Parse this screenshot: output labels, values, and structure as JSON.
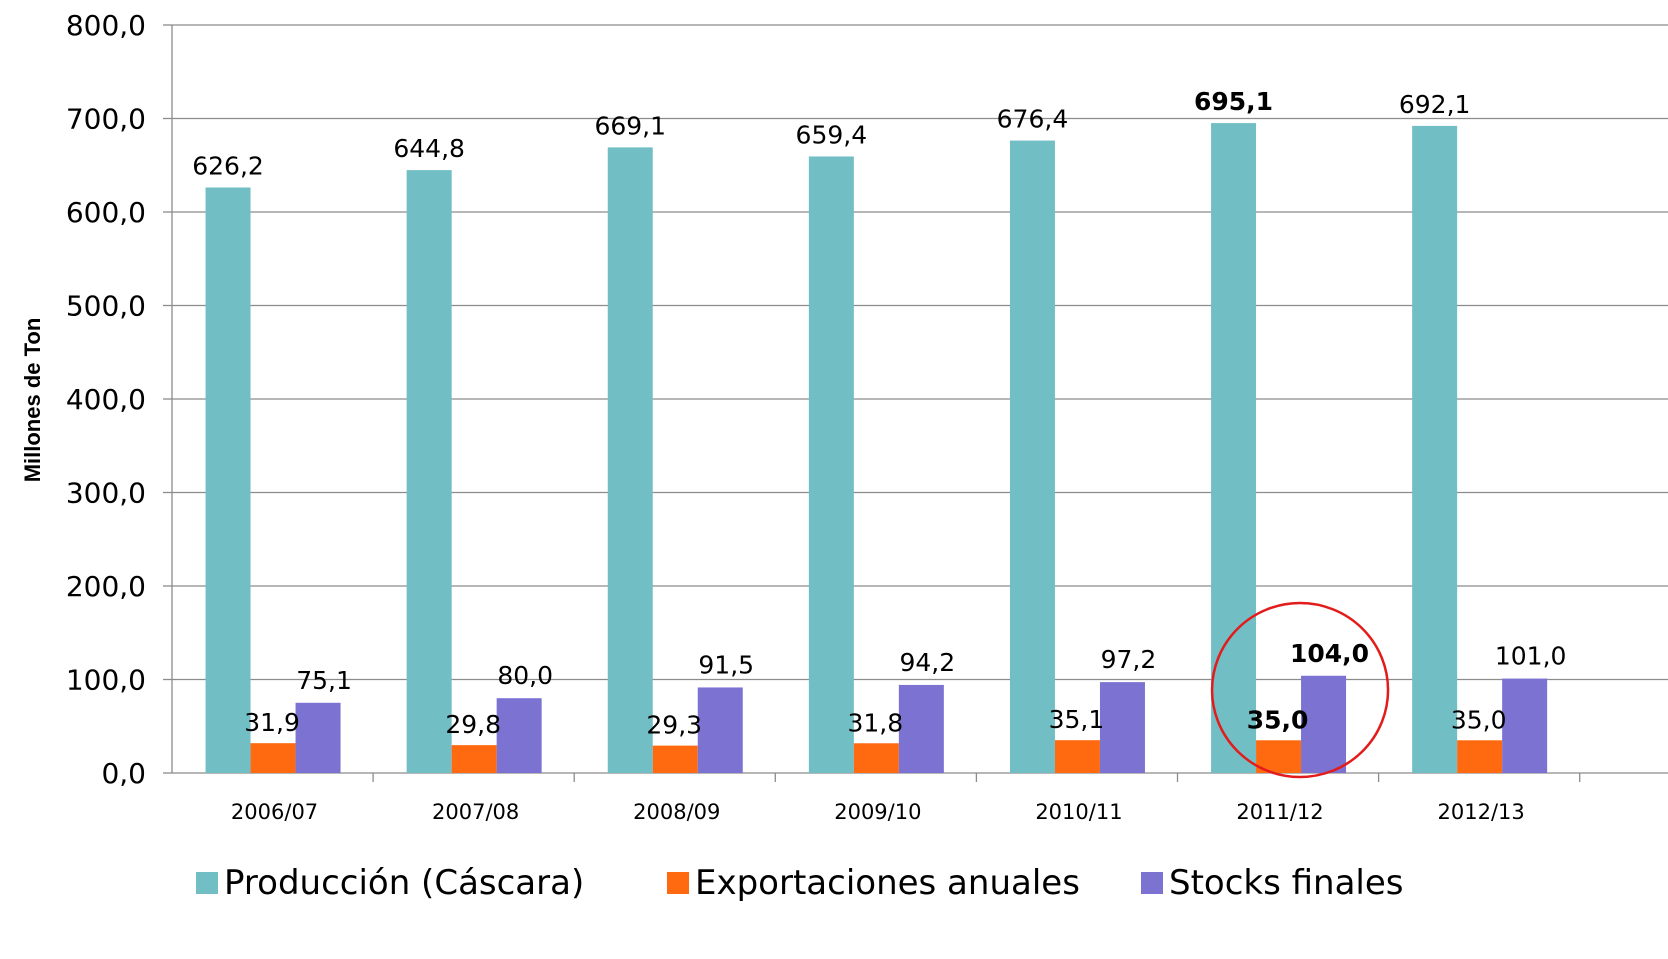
{
  "chart_data": {
    "type": "bar",
    "title": "",
    "xlabel": "",
    "ylabel": "Millones de Ton",
    "ylim": [
      0,
      800
    ],
    "yticks": [
      "0,0",
      "100,0",
      "200,0",
      "300,0",
      "400,0",
      "500,0",
      "600,0",
      "700,0",
      "800,0"
    ],
    "grid": true,
    "legend_position": "bottom",
    "categories": [
      "2006/07",
      "2007/08",
      "2008/09",
      "2009/10",
      "2010/11",
      "2011/12",
      "2012/13"
    ],
    "series": [
      {
        "name": "Producción (Cáscara)",
        "color": "#72BEC5",
        "values": [
          626.2,
          644.8,
          669.1,
          659.4,
          676.4,
          695.1,
          692.1
        ],
        "labels": [
          "626,2",
          "644,8",
          "669,1",
          "659,4",
          "676,4",
          "695,1",
          "692,1"
        ]
      },
      {
        "name": "Exportaciones anuales",
        "color": "#FF6A10",
        "values": [
          31.9,
          29.8,
          29.3,
          31.8,
          35.1,
          35.0,
          35.0
        ],
        "labels": [
          "31,9",
          "29,8",
          "29,3",
          "31,8",
          "35,1",
          "35,0",
          "35,0"
        ]
      },
      {
        "name": "Stocks finales",
        "color": "#7B72D1",
        "values": [
          75.1,
          80.0,
          91.5,
          94.2,
          97.2,
          104.0,
          101.0
        ],
        "labels": [
          "75,1",
          "80,0",
          "91,5",
          "94,2",
          "97,2",
          "104,0",
          "101,0"
        ]
      }
    ],
    "highlight": {
      "category": "2011/12",
      "bold_labels": true,
      "circle_color": "#E31B1B"
    }
  }
}
